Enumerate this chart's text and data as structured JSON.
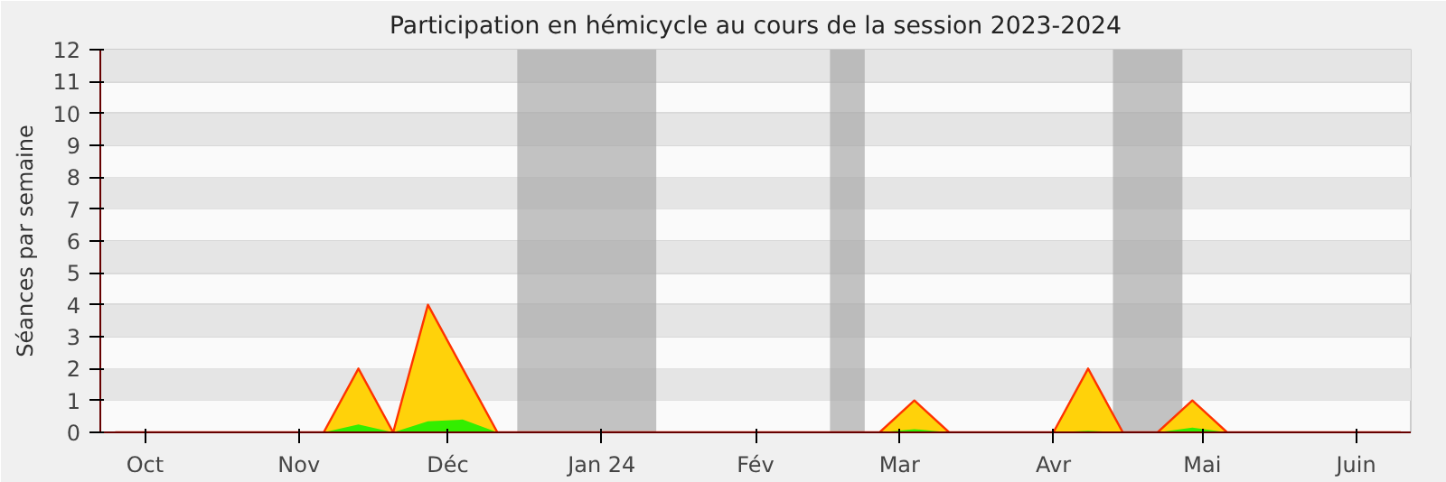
{
  "chart_data": {
    "type": "area",
    "title": "Participation en hémicycle au cours de la session 2023-2024",
    "ylabel": "Séances par semaine",
    "x": [
      "2023-09-25",
      "2023-10-02",
      "2023-10-09",
      "2023-10-16",
      "2023-10-23",
      "2023-10-30",
      "2023-11-06",
      "2023-11-13",
      "2023-11-20",
      "2023-11-27",
      "2023-12-04",
      "2023-12-11",
      "2023-12-18",
      "2023-12-25",
      "2024-01-01",
      "2024-01-08",
      "2024-01-15",
      "2024-01-22",
      "2024-01-29",
      "2024-02-05",
      "2024-02-12",
      "2024-02-19",
      "2024-02-26",
      "2024-03-04",
      "2024-03-11",
      "2024-03-18",
      "2024-03-25",
      "2024-04-01",
      "2024-04-08",
      "2024-04-15",
      "2024-04-22",
      "2024-04-29",
      "2024-05-06",
      "2024-05-13",
      "2024-05-20",
      "2024-05-27",
      "2024-06-03",
      "2024-06-10"
    ],
    "series": [
      {
        "color": "#ffd20a",
        "values": [
          0,
          0,
          0,
          0,
          0,
          0,
          0,
          2,
          0,
          4,
          2,
          0,
          0,
          0,
          0,
          0,
          0,
          0,
          0,
          0,
          0,
          0,
          0,
          1,
          0,
          0,
          0,
          0,
          2,
          0,
          0,
          1,
          0,
          0,
          0,
          0,
          0,
          0
        ]
      },
      {
        "color": "#33ee00",
        "values": [
          0,
          0,
          0,
          0,
          0,
          0,
          0,
          0.25,
          0,
          0.35,
          0.4,
          0,
          0,
          0,
          0,
          0,
          0,
          0,
          0,
          0,
          0,
          0,
          0,
          0.1,
          0,
          0,
          0,
          0,
          0.05,
          0,
          0,
          0.15,
          0,
          0,
          0,
          0,
          0,
          0
        ]
      }
    ],
    "xlim": [
      "2023-09-22",
      "2024-06-12"
    ],
    "xticks": [
      {
        "value": "2023-10-01",
        "label": "Oct"
      },
      {
        "value": "2023-11-01",
        "label": "Nov"
      },
      {
        "value": "2023-12-01",
        "label": "Déc"
      },
      {
        "value": "2024-01-01",
        "label": "Jan 24"
      },
      {
        "value": "2024-02-01",
        "label": "Fév"
      },
      {
        "value": "2024-03-01",
        "label": "Mar"
      },
      {
        "value": "2024-04-01",
        "label": "Avr"
      },
      {
        "value": "2024-05-01",
        "label": "Mai"
      },
      {
        "value": "2024-06-01",
        "label": "Juin"
      }
    ],
    "ylim": [
      0,
      12
    ],
    "yticks": [
      0,
      1,
      2,
      3,
      4,
      5,
      6,
      7,
      8,
      9,
      10,
      11,
      12
    ],
    "bands": [
      {
        "axis": "x",
        "from": "2023-12-15",
        "to": "2024-01-12",
        "color": "#aaaaaa"
      },
      {
        "axis": "x",
        "from": "2024-02-16",
        "to": "2024-02-23",
        "color": "#aaaaaa"
      },
      {
        "axis": "x",
        "from": "2024-04-13",
        "to": "2024-04-27",
        "color": "#aaaaaa"
      }
    ],
    "grid": "y"
  }
}
